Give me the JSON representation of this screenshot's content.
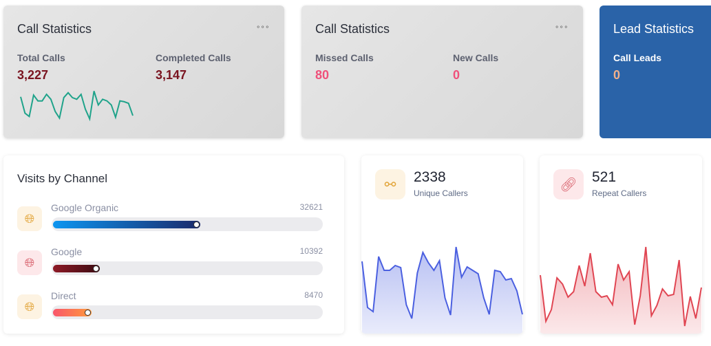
{
  "call_stats_1": {
    "title": "Call Statistics",
    "menu": "⚬⚬⚬",
    "total_label": "Total Calls",
    "total_value": "3,227",
    "completed_label": "Completed Calls",
    "completed_value": "3,147",
    "sparkline": [
      33,
      13,
      9,
      35,
      28,
      28,
      36,
      30,
      15,
      7,
      32,
      38,
      32,
      30,
      36,
      18,
      6,
      40,
      23,
      30,
      28,
      23,
      8,
      28,
      27,
      25,
      10
    ],
    "color": "#1fa38a"
  },
  "call_stats_2": {
    "title": "Call Statistics",
    "menu": "⚬⚬⚬",
    "missed_label": "Missed Calls",
    "missed_value": "80",
    "new_label": "New Calls",
    "new_value": "0"
  },
  "lead_stats": {
    "title": "Lead Statistics",
    "leads_label": "Call Leads",
    "leads_value": "0",
    "color": "#2a63a8"
  },
  "visits": {
    "title": "Visits by Channel",
    "max": 60000,
    "channels": [
      {
        "name": "Google Organic",
        "value": 32621,
        "icon": "globe-icon",
        "icon_color": "#e2a53a",
        "bg": "#fdf3e2",
        "grad": [
          "#0d95f0",
          "#1b2a6b"
        ]
      },
      {
        "name": "Google",
        "value": 10392,
        "icon": "globe-icon",
        "icon_color": "#d9646f",
        "bg": "#fde8ea",
        "grad": [
          "#8e1a26",
          "#3b0b12"
        ]
      },
      {
        "name": "Direct",
        "value": 8470,
        "icon": "globe-icon",
        "icon_color": "#e2a53a",
        "bg": "#fdf3e2",
        "grad": [
          "#f9566c",
          "#ff9a3c"
        ]
      }
    ]
  },
  "unique": {
    "value": "2338",
    "label": "Unique Callers",
    "icon": "users-icon",
    "color": "#4a5fe0",
    "series": [
      105,
      38,
      32,
      112,
      92,
      92,
      99,
      96,
      42,
      22,
      88,
      118,
      103,
      92,
      106,
      52,
      27,
      126,
      82,
      97,
      92,
      87,
      52,
      28,
      92,
      90,
      78,
      80,
      62,
      28
    ]
  },
  "repeat": {
    "value": "521",
    "label": "Repeat Callers",
    "icon": "link-icon",
    "color": "#e04552",
    "series": [
      85,
      18,
      35,
      81,
      72,
      53,
      61,
      99,
      69,
      117,
      61,
      53,
      55,
      42,
      101,
      78,
      90,
      13,
      55,
      126,
      26,
      41,
      65,
      55,
      57,
      107,
      11,
      54,
      22,
      67
    ]
  }
}
